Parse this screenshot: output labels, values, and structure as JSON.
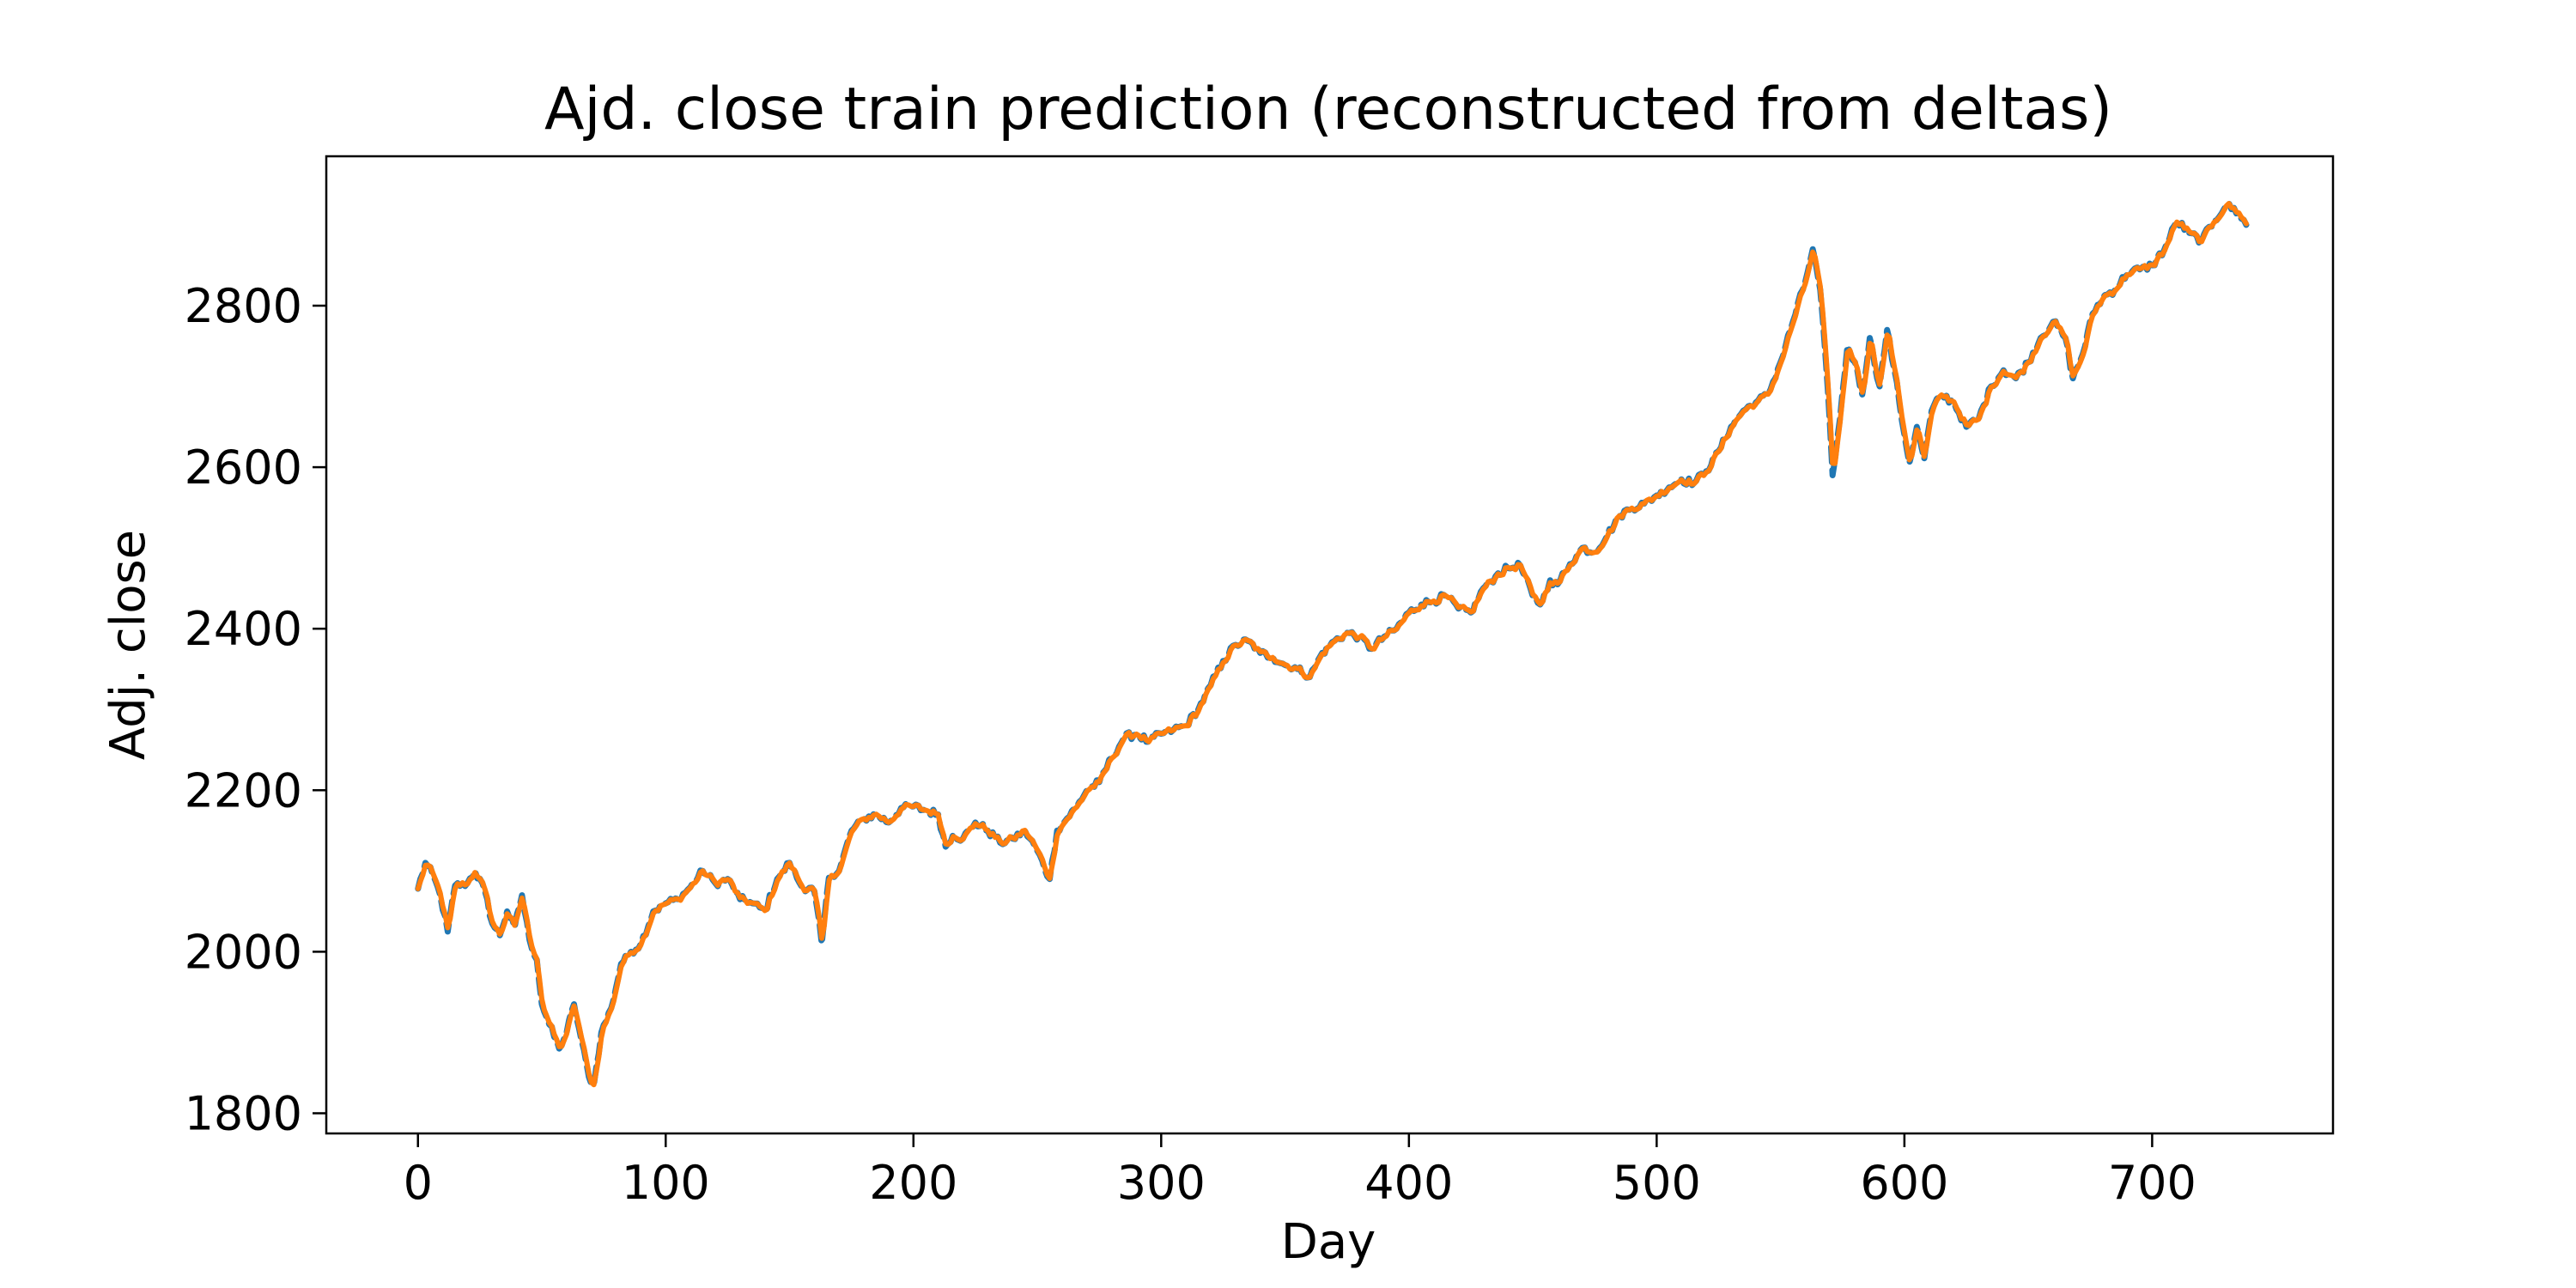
{
  "chart_data": {
    "type": "line",
    "title": "Ajd. close train prediction (reconstructed from deltas)",
    "xlabel": "Day",
    "ylabel": "Adj. close",
    "xlim": [
      -37,
      773
    ],
    "ylim": [
      1775,
      2985
    ],
    "xticks": [
      0,
      100,
      200,
      300,
      400,
      500,
      600,
      700
    ],
    "yticks": [
      1800,
      2000,
      2200,
      2400,
      2600,
      2800
    ],
    "grid": false,
    "legend": "none",
    "series_colors": [
      "#1f77b4",
      "#ff7f0e"
    ],
    "series_styles": [
      "dashed",
      "solid"
    ],
    "anchor_points": [
      [
        0,
        2078
      ],
      [
        3,
        2110
      ],
      [
        6,
        2095
      ],
      [
        9,
        2070
      ],
      [
        12,
        2025
      ],
      [
        15,
        2082
      ],
      [
        20,
        2085
      ],
      [
        23,
        2100
      ],
      [
        27,
        2075
      ],
      [
        30,
        2035
      ],
      [
        33,
        2020
      ],
      [
        36,
        2050
      ],
      [
        39,
        2030
      ],
      [
        42,
        2070
      ],
      [
        45,
        2015
      ],
      [
        48,
        1990
      ],
      [
        50,
        1935
      ],
      [
        53,
        1910
      ],
      [
        57,
        1880
      ],
      [
        60,
        1900
      ],
      [
        63,
        1935
      ],
      [
        66,
        1890
      ],
      [
        69,
        1845
      ],
      [
        71,
        1835
      ],
      [
        74,
        1900
      ],
      [
        78,
        1930
      ],
      [
        82,
        1985
      ],
      [
        86,
        2000
      ],
      [
        90,
        2010
      ],
      [
        95,
        2050
      ],
      [
        100,
        2060
      ],
      [
        105,
        2065
      ],
      [
        110,
        2080
      ],
      [
        115,
        2100
      ],
      [
        120,
        2085
      ],
      [
        125,
        2090
      ],
      [
        130,
        2065
      ],
      [
        135,
        2060
      ],
      [
        140,
        2050
      ],
      [
        145,
        2090
      ],
      [
        150,
        2110
      ],
      [
        155,
        2080
      ],
      [
        160,
        2075
      ],
      [
        163,
        2010
      ],
      [
        166,
        2095
      ],
      [
        170,
        2100
      ],
      [
        175,
        2150
      ],
      [
        180,
        2165
      ],
      [
        185,
        2170
      ],
      [
        190,
        2160
      ],
      [
        195,
        2178
      ],
      [
        200,
        2180
      ],
      [
        205,
        2175
      ],
      [
        210,
        2170
      ],
      [
        213,
        2130
      ],
      [
        216,
        2145
      ],
      [
        220,
        2140
      ],
      [
        225,
        2160
      ],
      [
        230,
        2150
      ],
      [
        235,
        2135
      ],
      [
        240,
        2140
      ],
      [
        245,
        2150
      ],
      [
        250,
        2125
      ],
      [
        255,
        2090
      ],
      [
        258,
        2150
      ],
      [
        262,
        2165
      ],
      [
        266,
        2180
      ],
      [
        270,
        2200
      ],
      [
        275,
        2210
      ],
      [
        280,
        2240
      ],
      [
        285,
        2265
      ],
      [
        290,
        2270
      ],
      [
        295,
        2260
      ],
      [
        300,
        2270
      ],
      [
        305,
        2275
      ],
      [
        310,
        2280
      ],
      [
        315,
        2300
      ],
      [
        320,
        2330
      ],
      [
        325,
        2360
      ],
      [
        330,
        2380
      ],
      [
        335,
        2385
      ],
      [
        340,
        2370
      ],
      [
        345,
        2365
      ],
      [
        350,
        2355
      ],
      [
        355,
        2350
      ],
      [
        360,
        2340
      ],
      [
        365,
        2370
      ],
      [
        370,
        2385
      ],
      [
        375,
        2395
      ],
      [
        380,
        2390
      ],
      [
        385,
        2375
      ],
      [
        390,
        2390
      ],
      [
        395,
        2400
      ],
      [
        400,
        2420
      ],
      [
        405,
        2430
      ],
      [
        410,
        2435
      ],
      [
        415,
        2440
      ],
      [
        420,
        2425
      ],
      [
        425,
        2420
      ],
      [
        430,
        2450
      ],
      [
        435,
        2465
      ],
      [
        440,
        2475
      ],
      [
        445,
        2478
      ],
      [
        450,
        2440
      ],
      [
        453,
        2430
      ],
      [
        457,
        2460
      ],
      [
        460,
        2455
      ],
      [
        465,
        2480
      ],
      [
        470,
        2500
      ],
      [
        475,
        2495
      ],
      [
        480,
        2515
      ],
      [
        485,
        2540
      ],
      [
        490,
        2550
      ],
      [
        495,
        2555
      ],
      [
        500,
        2565
      ],
      [
        505,
        2575
      ],
      [
        510,
        2585
      ],
      [
        515,
        2580
      ],
      [
        520,
        2595
      ],
      [
        525,
        2620
      ],
      [
        530,
        2650
      ],
      [
        535,
        2670
      ],
      [
        540,
        2680
      ],
      [
        545,
        2690
      ],
      [
        550,
        2730
      ],
      [
        555,
        2780
      ],
      [
        560,
        2830
      ],
      [
        563,
        2870
      ],
      [
        566,
        2820
      ],
      [
        569,
        2700
      ],
      [
        571,
        2590
      ],
      [
        574,
        2660
      ],
      [
        577,
        2750
      ],
      [
        580,
        2730
      ],
      [
        583,
        2690
      ],
      [
        586,
        2760
      ],
      [
        590,
        2700
      ],
      [
        593,
        2770
      ],
      [
        596,
        2720
      ],
      [
        600,
        2640
      ],
      [
        602,
        2605
      ],
      [
        605,
        2650
      ],
      [
        608,
        2610
      ],
      [
        611,
        2670
      ],
      [
        615,
        2690
      ],
      [
        620,
        2680
      ],
      [
        625,
        2650
      ],
      [
        630,
        2660
      ],
      [
        635,
        2700
      ],
      [
        640,
        2720
      ],
      [
        645,
        2710
      ],
      [
        650,
        2730
      ],
      [
        655,
        2760
      ],
      [
        660,
        2780
      ],
      [
        665,
        2760
      ],
      [
        668,
        2710
      ],
      [
        672,
        2740
      ],
      [
        676,
        2790
      ],
      [
        680,
        2810
      ],
      [
        685,
        2820
      ],
      [
        690,
        2840
      ],
      [
        695,
        2845
      ],
      [
        700,
        2850
      ],
      [
        705,
        2870
      ],
      [
        710,
        2905
      ],
      [
        715,
        2890
      ],
      [
        720,
        2880
      ],
      [
        725,
        2905
      ],
      [
        730,
        2925
      ],
      [
        735,
        2915
      ],
      [
        738,
        2900
      ]
    ]
  }
}
